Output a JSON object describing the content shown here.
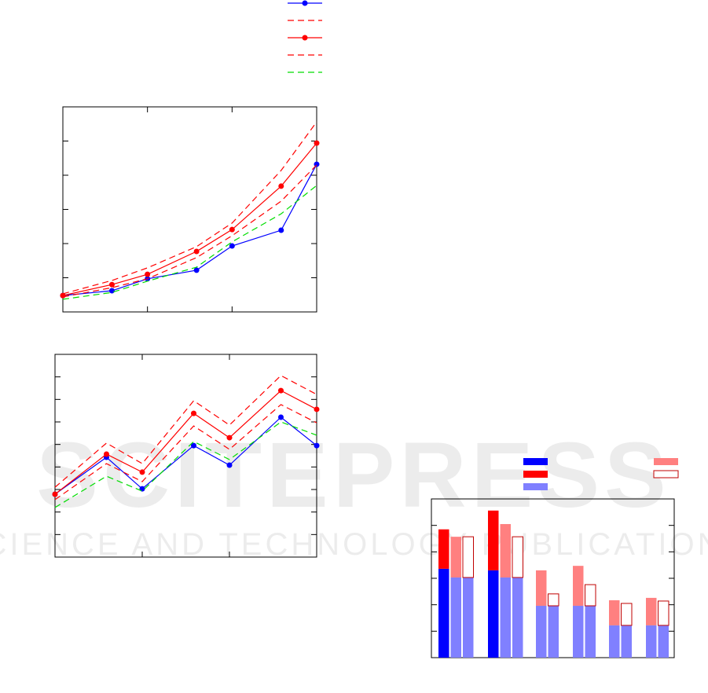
{
  "watermark": [
    "SCITEPRESS",
    "SCIENCE AND TECHNOLOGY PUBLICATIONS"
  ],
  "chart_data": [
    {
      "type": "line",
      "xlim": [
        0,
        3
      ],
      "xticks": [
        1,
        2
      ],
      "ylim": [
        0,
        6
      ],
      "yticks": [
        1,
        2,
        3,
        4,
        5
      ],
      "x": [
        0,
        0.58,
        1,
        1.58,
        2,
        2.58,
        3
      ],
      "series": [
        {
          "color": "#0000ff",
          "dashed": false,
          "markers": true,
          "values": [
            0.48,
            0.62,
            0.97,
            1.22,
            1.93,
            2.39,
            4.32
          ]
        },
        {
          "color": "#ff0000",
          "dashed": true,
          "markers": false,
          "values": [
            0.53,
            0.92,
            1.29,
            1.91,
            2.6,
            4.14,
            5.56
          ]
        },
        {
          "color": "#ff0000",
          "dashed": false,
          "markers": true,
          "values": [
            0.48,
            0.8,
            1.1,
            1.77,
            2.41,
            3.68,
            4.94
          ]
        },
        {
          "color": "#ff0000",
          "dashed": true,
          "markers": false,
          "values": [
            0.44,
            0.71,
            0.97,
            1.59,
            2.23,
            3.24,
            4.3
          ]
        },
        {
          "color": "#00dd00",
          "dashed": true,
          "markers": false,
          "values": [
            0.37,
            0.57,
            0.9,
            1.31,
            2.05,
            2.87,
            3.7
          ]
        }
      ]
    },
    {
      "type": "line",
      "xlim": [
        0,
        3
      ],
      "xticks": [
        1,
        2
      ],
      "ylim": [
        0,
        9
      ],
      "yticks": [
        1,
        2,
        3,
        4,
        5,
        6,
        7,
        8
      ],
      "x": [
        0,
        0.59,
        1,
        1.59,
        2,
        2.59,
        3
      ],
      "series": [
        {
          "color": "#0000ff",
          "dashed": false,
          "markers": true,
          "values": [
            2.79,
            4.43,
            3.03,
            4.95,
            4.08,
            6.21,
            4.95
          ]
        },
        {
          "color": "#ff0000",
          "dashed": true,
          "markers": false,
          "values": [
            3.1,
            5.06,
            4.15,
            6.94,
            5.86,
            8.06,
            7.22
          ]
        },
        {
          "color": "#ff0000",
          "dashed": false,
          "markers": true,
          "values": [
            2.79,
            4.57,
            3.77,
            6.38,
            5.3,
            7.39,
            6.56
          ]
        },
        {
          "color": "#ff0000",
          "dashed": true,
          "markers": false,
          "values": [
            2.55,
            4.15,
            3.35,
            5.82,
            4.78,
            6.77,
            5.96
          ]
        },
        {
          "color": "#00dd00",
          "dashed": true,
          "markers": false,
          "values": [
            2.2,
            3.59,
            2.93,
            5.13,
            4.33,
            6.0,
            5.41
          ]
        }
      ]
    },
    {
      "type": "bar",
      "ylim": [
        0,
        6
      ],
      "yticks": [
        1,
        2,
        3,
        4,
        5
      ],
      "categories": [
        null,
        null,
        null,
        null,
        null,
        null
      ],
      "series": [
        {
          "color": "#0000ff",
          "values": [
            3.36,
            3.3,
            null,
            null,
            null,
            null
          ]
        },
        {
          "color": "#ff0000",
          "values": [
            1.49,
            2.26,
            null,
            null,
            null,
            null
          ]
        },
        {
          "color": "#8080ff",
          "values": [
            3.03,
            3.03,
            1.96,
            1.96,
            1.22,
            1.22
          ]
        },
        {
          "color": "#ff8080",
          "values": [
            1.54,
            2.02,
            1.34,
            1.51,
            0.95,
            1.04
          ]
        },
        {
          "color": "#c00000",
          "outline": true,
          "values": [
            1.54,
            1.54,
            0.45,
            0.8,
            0.83,
            0.92
          ]
        }
      ]
    }
  ]
}
